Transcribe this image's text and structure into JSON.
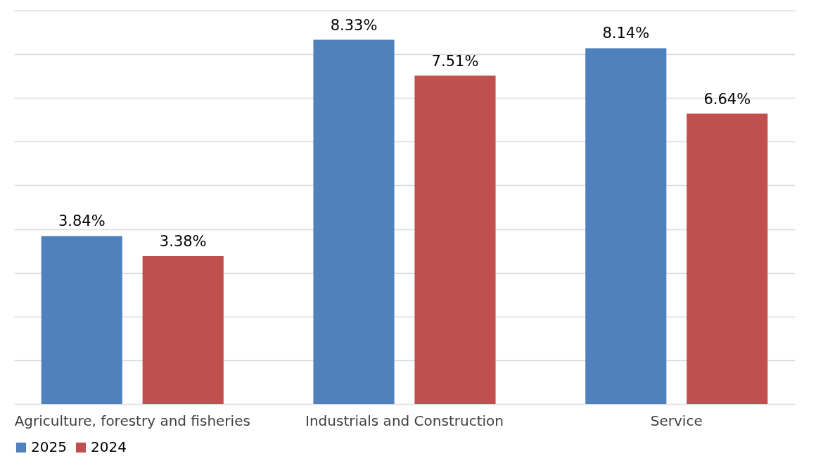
{
  "chart_data": {
    "type": "bar",
    "categories": [
      "Agriculture, forestry and fisheries",
      "Industrials and Construction",
      "Service"
    ],
    "series": [
      {
        "name": "2025",
        "color": "#4f81bd",
        "values": [
          3.84,
          8.33,
          8.14
        ],
        "value_labels": [
          "3.84%",
          "8.33%",
          "8.14%"
        ]
      },
      {
        "name": "2024",
        "color": "#c0504d",
        "values": [
          3.38,
          7.51,
          6.64
        ],
        "value_labels": [
          "3.38%",
          "7.51%",
          "6.64%"
        ]
      }
    ],
    "ylim": [
      0,
      9
    ],
    "yticks": [
      {
        "value": 0,
        "label": null
      },
      {
        "value": 1,
        "label": null
      },
      {
        "value": 2,
        "label": null
      },
      {
        "value": 3,
        "label": null
      },
      {
        "value": 4,
        "label": null
      },
      {
        "value": 5,
        "label": null
      },
      {
        "value": 6,
        "label": null
      },
      {
        "value": 7,
        "label": null
      },
      {
        "value": 8,
        "label": null
      },
      {
        "value": 9,
        "label": null
      }
    ],
    "tick_labels": "x",
    "grid": "y",
    "legend": "bottom"
  }
}
